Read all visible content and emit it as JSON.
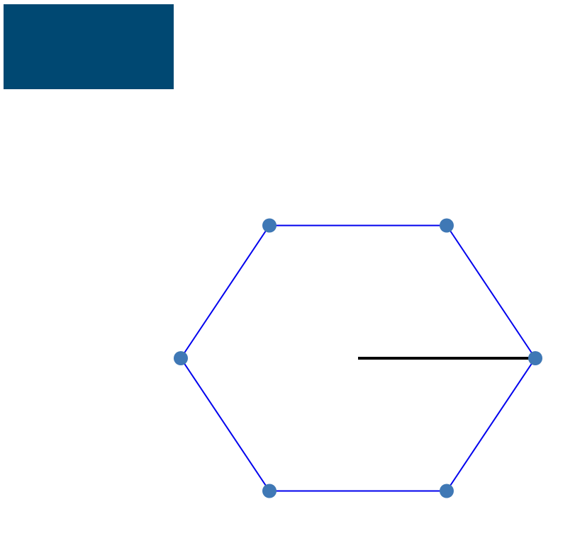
{
  "colors": {
    "background": "#ffffff",
    "block_fill": "#004872",
    "hexagon_stroke": "#0000ee",
    "vertex_fill": "#3f78b5",
    "radius_stroke": "#000000"
  },
  "diagram": {
    "shape": "regular-hexagon",
    "vertex_count": 6,
    "has_radius_line": true,
    "radius_to_vertex_index": 0
  }
}
